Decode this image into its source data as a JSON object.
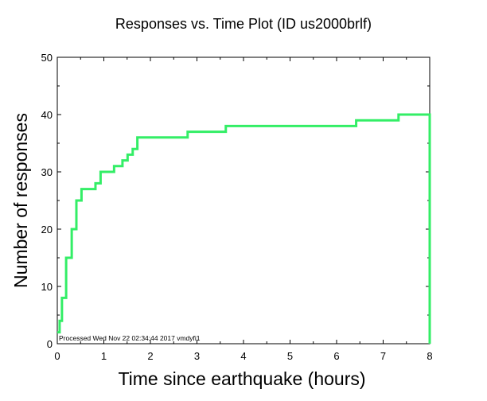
{
  "chart_data": {
    "type": "line",
    "title": "Responses vs. Time Plot (ID us2000brlf)",
    "xlabel": "Time since earthquake (hours)",
    "ylabel": "Number of responses",
    "xlim": [
      0,
      8
    ],
    "ylim": [
      0,
      50
    ],
    "x_ticks": [
      "0",
      "1",
      "2",
      "3",
      "4",
      "5",
      "6",
      "7",
      "8"
    ],
    "y_ticks": [
      "0",
      "10",
      "20",
      "30",
      "40",
      "50"
    ],
    "grid": false,
    "line_color": "#33ee66",
    "step": true,
    "series": [
      {
        "x": [
          0,
          0.05,
          0.1,
          0.19,
          0.31,
          0.41,
          0.52,
          0.59,
          0.82,
          0.93,
          1.22,
          1.4,
          1.51,
          1.62,
          1.72,
          2.8,
          3.62,
          6.42,
          7.33,
          8.0,
          8.0
        ],
        "values": [
          2,
          4,
          8,
          15,
          20,
          25,
          27,
          27,
          28,
          30,
          31,
          32,
          33,
          34,
          36,
          37,
          38,
          39,
          40,
          40,
          0
        ]
      }
    ]
  },
  "note": "Processed Wed Nov 22 02:34:44 2017 vmdyfi1"
}
